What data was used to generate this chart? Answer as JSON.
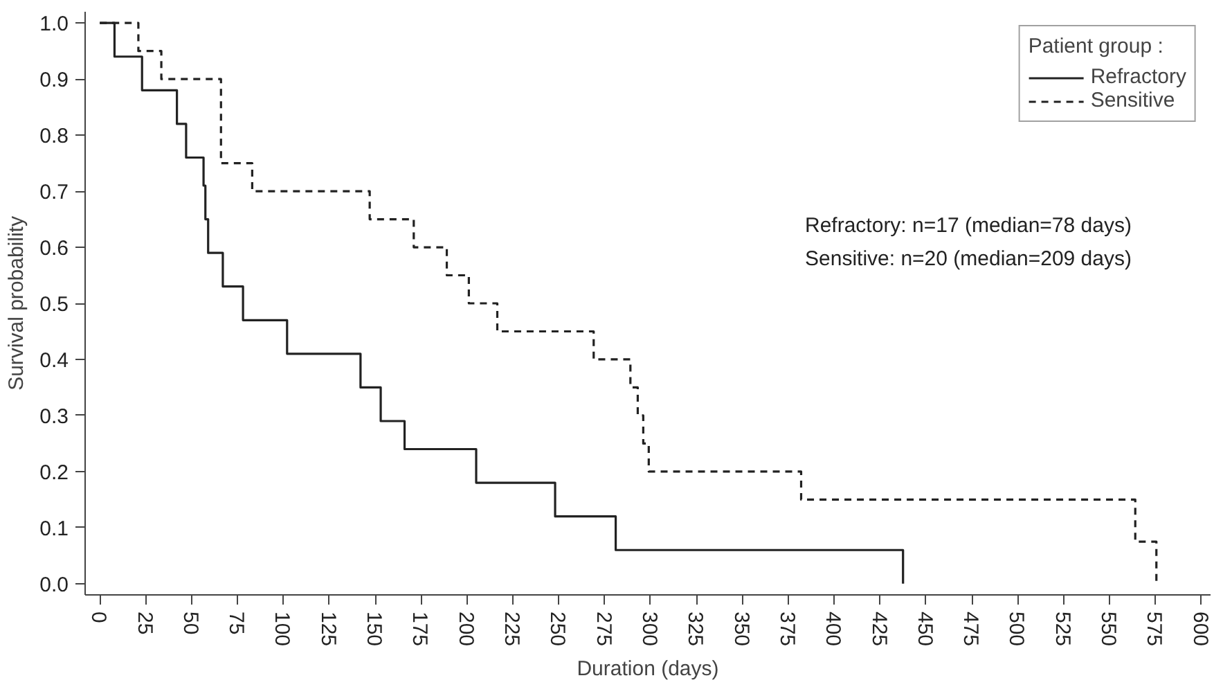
{
  "chart_data": {
    "type": "step",
    "xlabel": "Duration (days)",
    "ylabel": "Survival probability",
    "legend_title": "Patient group :",
    "xlim": [
      -8,
      605
    ],
    "ylim": [
      -0.02,
      1.02
    ],
    "xticks": [
      0,
      25,
      50,
      75,
      100,
      125,
      150,
      175,
      200,
      225,
      250,
      275,
      300,
      325,
      350,
      375,
      400,
      425,
      450,
      475,
      500,
      525,
      550,
      575,
      600
    ],
    "yticks": [
      {
        "value": 0,
        "label": "0.0"
      },
      {
        "value": 0.1,
        "label": "0.1"
      },
      {
        "value": 0.2,
        "label": "0.2"
      },
      {
        "value": 0.3,
        "label": "0.3"
      },
      {
        "value": 0.4,
        "label": "0.4"
      },
      {
        "value": 0.5,
        "label": "0.5"
      },
      {
        "value": 0.6,
        "label": "0.6"
      },
      {
        "value": 0.7,
        "label": "0.7"
      },
      {
        "value": 0.8,
        "label": "0.8"
      },
      {
        "value": 0.9,
        "label": "0.9"
      },
      {
        "value": 1,
        "label": "1.0"
      }
    ],
    "grid": false,
    "legend": "top right",
    "series": [
      {
        "name": "Refractory",
        "color": "#222222",
        "line_style": "solid",
        "x": [
          0,
          8,
          23,
          42,
          47,
          56.5,
          57.5,
          59,
          67,
          78,
          102,
          142,
          153,
          166,
          205,
          248,
          281,
          437.5
        ],
        "values": [
          1,
          0.94,
          0.88,
          0.82,
          0.76,
          0.71,
          0.65,
          0.59,
          0.53,
          0.47,
          0.41,
          0.35,
          0.29,
          0.24,
          0.18,
          0.12,
          0.06,
          0
        ]
      },
      {
        "name": "Sensitive",
        "color": "#222222",
        "line_style": "dashed",
        "x": [
          0,
          21,
          33.5,
          66,
          83,
          147,
          171,
          189,
          201,
          216.5,
          269,
          289,
          293,
          296,
          299,
          382,
          564,
          575.5
        ],
        "values": [
          1,
          0.95,
          0.9,
          0.75,
          0.7,
          0.65,
          0.6,
          0.55,
          0.5,
          0.45,
          0.4,
          0.35,
          0.3,
          0.25,
          0.2,
          0.15,
          0.075,
          0
        ]
      }
    ],
    "annotations": [
      "Refractory: n=17 (median=78 days)",
      "Sensitive: n=20 (median=209 days)"
    ]
  }
}
